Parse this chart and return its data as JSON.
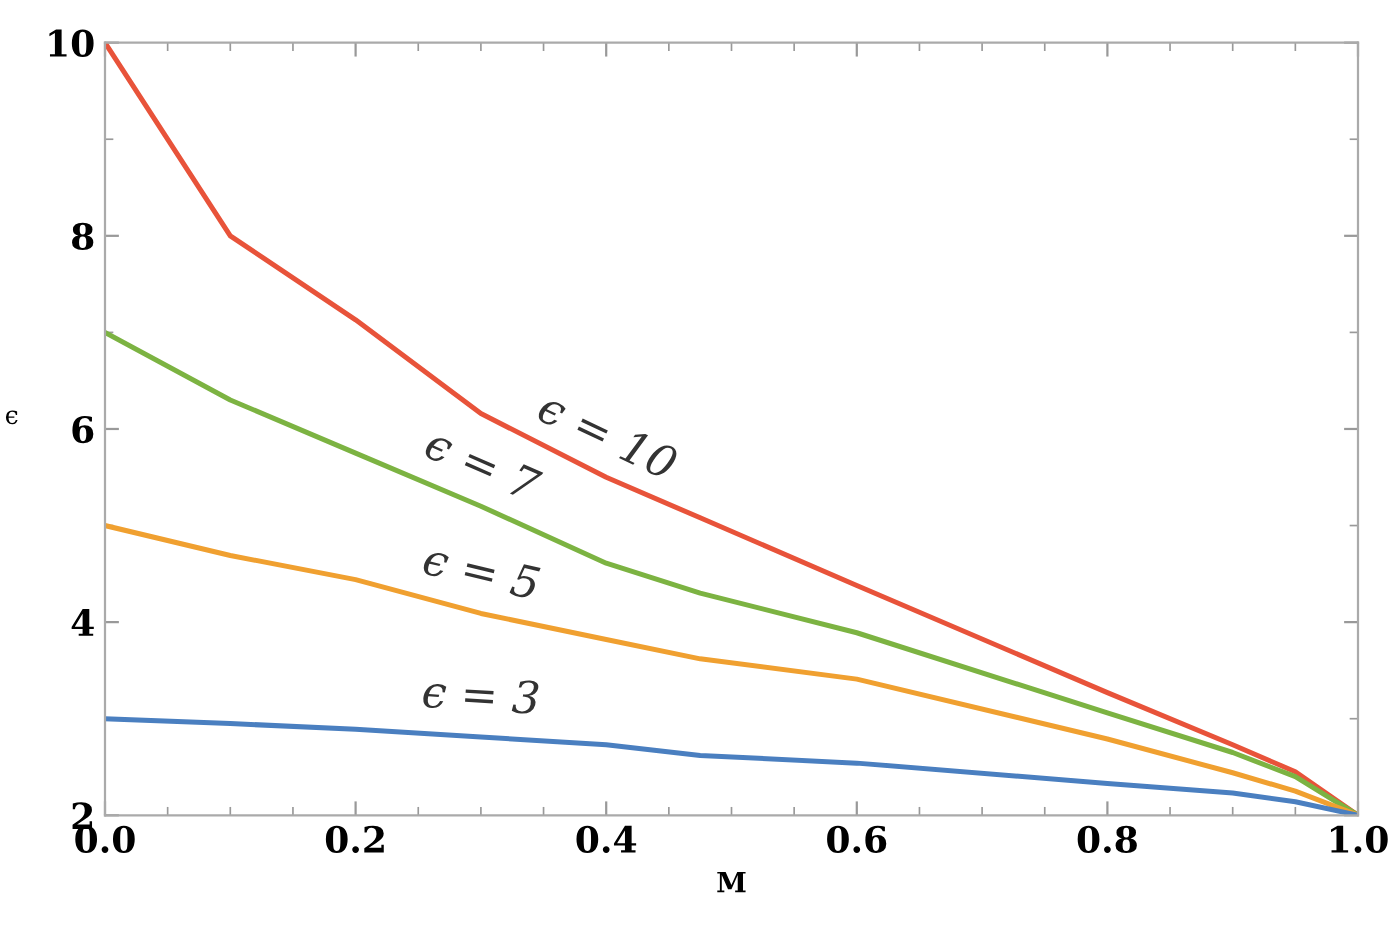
{
  "chart_data": {
    "type": "line",
    "xlabel": "M",
    "ylabel": "ϵ",
    "x": [
      0,
      0.1,
      0.2,
      0.3,
      0.4,
      0.475,
      0.6,
      0.8,
      0.9,
      0.95,
      1.0
    ],
    "series": [
      {
        "name": "ϵ = 10",
        "color": "#e8533a",
        "values": [
          10,
          8.0,
          7.13,
          6.16,
          5.5,
          5.08,
          4.38,
          3.27,
          2.73,
          2.45,
          2
        ]
      },
      {
        "name": "ϵ = 7",
        "color": "#7cb342",
        "values": [
          7,
          6.3,
          5.75,
          5.2,
          4.61,
          4.3,
          3.89,
          3.06,
          2.65,
          2.4,
          2
        ]
      },
      {
        "name": "ϵ = 5",
        "color": "#f0a030",
        "values": [
          5,
          4.69,
          4.44,
          4.09,
          3.82,
          3.62,
          3.41,
          2.79,
          2.44,
          2.25,
          2
        ]
      },
      {
        "name": "ϵ = 3",
        "color": "#4a7fc0",
        "values": [
          3,
          2.95,
          2.89,
          2.81,
          2.73,
          2.62,
          2.54,
          2.33,
          2.23,
          2.14,
          2
        ]
      }
    ],
    "xlim": [
      0,
      1
    ],
    "ylim": [
      2,
      10
    ],
    "xticks": [
      {
        "value": 0,
        "label": "0.0"
      },
      0.2,
      0.4,
      0.6,
      0.8,
      {
        "value": 1,
        "label": "1.0"
      }
    ],
    "yticks": [
      2,
      4,
      6,
      8,
      10
    ],
    "grid": false,
    "legend": false,
    "marker": "none",
    "line_style": "solid"
  }
}
